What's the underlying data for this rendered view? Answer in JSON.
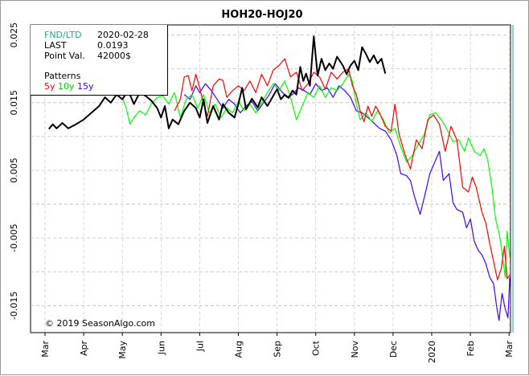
{
  "chart_data": {
    "type": "line",
    "title": "HOH20-HOJ20",
    "xlabel": "",
    "ylabel": "",
    "x_ticks": [
      "Mar",
      "Apr",
      "May",
      "Jun",
      "Jul",
      "Aug",
      "Sep",
      "Oct",
      "Nov",
      "Dec",
      "2020",
      "Feb",
      "Mar"
    ],
    "y_ticks": [
      "0.025",
      "0.015",
      "0.005",
      "-0.005",
      "-0.015"
    ],
    "ylim": [
      -0.019,
      0.0265
    ],
    "grid": true,
    "copyright": "© 2019 SeasonAlgo.com",
    "info": {
      "fnd_label": "FND/LTD",
      "fnd_value": "2020-02-28",
      "last_label": "LAST",
      "last_value": "0.0193",
      "point_label": "Point Val.",
      "point_value": "42000$",
      "patterns_label": "Patterns",
      "p5": "5y",
      "p10": "10y",
      "p15": "15y"
    },
    "colors": {
      "current": "#000000",
      "5y": "#ff0000",
      "10y": "#00ff00",
      "15y": "#4400ff",
      "fnd_line": "#2aa198"
    },
    "series": [
      {
        "key": "current",
        "color": "#000000",
        "points": [
          [
            0.1,
            0.0111
          ],
          [
            0.2,
            0.0118
          ],
          [
            0.3,
            0.0112
          ],
          [
            0.45,
            0.012
          ],
          [
            0.6,
            0.0112
          ],
          [
            0.8,
            0.0118
          ],
          [
            1.0,
            0.0125
          ],
          [
            1.2,
            0.0135
          ],
          [
            1.4,
            0.0145
          ],
          [
            1.55,
            0.0158
          ],
          [
            1.7,
            0.015
          ],
          [
            1.85,
            0.0162
          ],
          [
            2.0,
            0.0155
          ],
          [
            2.15,
            0.0168
          ],
          [
            2.3,
            0.0148
          ],
          [
            2.45,
            0.0165
          ],
          [
            2.6,
            0.016
          ],
          [
            2.75,
            0.0153
          ],
          [
            2.9,
            0.0142
          ],
          [
            3.0,
            0.0128
          ],
          [
            3.1,
            0.0145
          ],
          [
            3.2,
            0.0112
          ],
          [
            3.3,
            0.0125
          ],
          [
            3.45,
            0.0118
          ],
          [
            3.6,
            0.0138
          ],
          [
            3.75,
            0.015
          ],
          [
            3.9,
            0.0142
          ],
          [
            4.0,
            0.0128
          ],
          [
            4.1,
            0.0155
          ],
          [
            4.2,
            0.012
          ],
          [
            4.35,
            0.0145
          ],
          [
            4.5,
            0.0125
          ],
          [
            4.6,
            0.0148
          ],
          [
            4.75,
            0.0135
          ],
          [
            4.9,
            0.0128
          ],
          [
            5.0,
            0.0148
          ],
          [
            5.1,
            0.0172
          ],
          [
            5.2,
            0.014
          ],
          [
            5.35,
            0.0156
          ],
          [
            5.5,
            0.0143
          ],
          [
            5.6,
            0.0158
          ],
          [
            5.75,
            0.0145
          ],
          [
            5.9,
            0.016
          ],
          [
            6.0,
            0.017
          ],
          [
            6.1,
            0.0155
          ],
          [
            6.2,
            0.0162
          ],
          [
            6.3,
            0.0157
          ],
          [
            6.4,
            0.0168
          ],
          [
            6.5,
            0.0162
          ],
          [
            6.6,
            0.0203
          ],
          [
            6.68,
            0.0182
          ],
          [
            6.75,
            0.0193
          ],
          [
            6.85,
            0.0175
          ],
          [
            6.95,
            0.0248
          ],
          [
            7.05,
            0.019
          ],
          [
            7.15,
            0.0215
          ],
          [
            7.25,
            0.0198
          ],
          [
            7.35,
            0.0208
          ],
          [
            7.45,
            0.02
          ],
          [
            7.55,
            0.0218
          ],
          [
            7.7,
            0.0205
          ],
          [
            7.8,
            0.0192
          ],
          [
            7.9,
            0.0205
          ],
          [
            8.0,
            0.0212
          ],
          [
            8.1,
            0.0198
          ],
          [
            8.2,
            0.0232
          ],
          [
            8.3,
            0.0222
          ],
          [
            8.4,
            0.021
          ],
          [
            8.5,
            0.022
          ],
          [
            8.6,
            0.0208
          ],
          [
            8.7,
            0.0215
          ],
          [
            8.8,
            0.0193
          ]
        ]
      },
      {
        "key": "5y",
        "color": "#ff0000",
        "points": [
          [
            3.35,
            0.0138
          ],
          [
            3.5,
            0.0155
          ],
          [
            3.6,
            0.0188
          ],
          [
            3.7,
            0.019
          ],
          [
            3.8,
            0.0168
          ],
          [
            3.9,
            0.0192
          ],
          [
            4.0,
            0.0172
          ],
          [
            4.1,
            0.0148
          ],
          [
            4.2,
            0.013
          ],
          [
            4.35,
            0.0175
          ],
          [
            4.5,
            0.0185
          ],
          [
            4.6,
            0.0183
          ],
          [
            4.7,
            0.0158
          ],
          [
            4.85,
            0.0168
          ],
          [
            5.0,
            0.0175
          ],
          [
            5.15,
            0.0168
          ],
          [
            5.3,
            0.0182
          ],
          [
            5.45,
            0.0165
          ],
          [
            5.6,
            0.0192
          ],
          [
            5.75,
            0.0175
          ],
          [
            5.9,
            0.0198
          ],
          [
            6.05,
            0.0205
          ],
          [
            6.2,
            0.0215
          ],
          [
            6.35,
            0.0188
          ],
          [
            6.5,
            0.0195
          ],
          [
            6.65,
            0.0168
          ],
          [
            6.8,
            0.0178
          ],
          [
            6.95,
            0.0195
          ],
          [
            7.1,
            0.0188
          ],
          [
            7.25,
            0.017
          ],
          [
            7.4,
            0.0195
          ],
          [
            7.55,
            0.0185
          ],
          [
            7.7,
            0.0195
          ],
          [
            7.85,
            0.02
          ],
          [
            7.95,
            0.0175
          ],
          [
            8.05,
            0.0162
          ],
          [
            8.15,
            0.0138
          ],
          [
            8.25,
            0.0122
          ],
          [
            8.35,
            0.0145
          ],
          [
            8.45,
            0.013
          ],
          [
            8.55,
            0.0145
          ],
          [
            8.65,
            0.0135
          ],
          [
            8.8,
            0.0115
          ],
          [
            8.95,
            0.0108
          ],
          [
            9.05,
            0.0148
          ],
          [
            9.15,
            0.0105
          ],
          [
            9.3,
            0.0075
          ],
          [
            9.45,
            0.0052
          ],
          [
            9.6,
            0.0095
          ],
          [
            9.75,
            0.0082
          ],
          [
            9.9,
            0.0125
          ],
          [
            10.05,
            0.0132
          ],
          [
            10.2,
            0.0118
          ],
          [
            10.35,
            0.0078
          ],
          [
            10.5,
            0.0115
          ],
          [
            10.65,
            0.0095
          ],
          [
            10.8,
            0.0025
          ],
          [
            10.95,
            0.0018
          ],
          [
            11.05,
            0.004
          ],
          [
            11.15,
            0.0025
          ],
          [
            11.3,
            -0.0012
          ],
          [
            11.4,
            -0.0028
          ],
          [
            11.5,
            -0.0058
          ],
          [
            11.6,
            -0.0085
          ],
          [
            11.7,
            -0.0112
          ],
          [
            11.8,
            -0.0095
          ],
          [
            11.88,
            -0.0062
          ],
          [
            11.95,
            -0.011
          ],
          [
            12.02,
            -0.0105
          ]
        ]
      },
      {
        "key": "10y",
        "color": "#00ff00",
        "points": [
          [
            2.0,
            0.0158
          ],
          [
            2.1,
            0.0142
          ],
          [
            2.2,
            0.0118
          ],
          [
            2.3,
            0.0128
          ],
          [
            2.45,
            0.0138
          ],
          [
            2.6,
            0.0132
          ],
          [
            2.75,
            0.0148
          ],
          [
            2.9,
            0.0158
          ],
          [
            3.05,
            0.016
          ],
          [
            3.2,
            0.0148
          ],
          [
            3.35,
            0.0165
          ],
          [
            3.5,
            0.0128
          ],
          [
            3.65,
            0.0155
          ],
          [
            3.8,
            0.0162
          ],
          [
            3.95,
            0.0142
          ],
          [
            4.1,
            0.0162
          ],
          [
            4.25,
            0.0135
          ],
          [
            4.4,
            0.0148
          ],
          [
            4.55,
            0.0128
          ],
          [
            4.7,
            0.0142
          ],
          [
            4.85,
            0.0135
          ],
          [
            5.0,
            0.0152
          ],
          [
            5.15,
            0.0138
          ],
          [
            5.3,
            0.0148
          ],
          [
            5.45,
            0.0135
          ],
          [
            5.6,
            0.015
          ],
          [
            5.75,
            0.0165
          ],
          [
            5.9,
            0.0178
          ],
          [
            6.05,
            0.0168
          ],
          [
            6.2,
            0.0182
          ],
          [
            6.35,
            0.0158
          ],
          [
            6.5,
            0.0125
          ],
          [
            6.65,
            0.0145
          ],
          [
            6.8,
            0.0165
          ],
          [
            6.95,
            0.0158
          ],
          [
            7.1,
            0.0175
          ],
          [
            7.25,
            0.0158
          ],
          [
            7.4,
            0.0172
          ],
          [
            7.55,
            0.0168
          ],
          [
            7.7,
            0.0178
          ],
          [
            7.85,
            0.0192
          ],
          [
            7.95,
            0.0182
          ],
          [
            8.05,
            0.0148
          ],
          [
            8.15,
            0.0125
          ],
          [
            8.3,
            0.0135
          ],
          [
            8.45,
            0.0122
          ],
          [
            8.6,
            0.0138
          ],
          [
            8.75,
            0.0125
          ],
          [
            8.9,
            0.0105
          ],
          [
            9.05,
            0.0112
          ],
          [
            9.2,
            0.0085
          ],
          [
            9.35,
            0.0062
          ],
          [
            9.5,
            0.0072
          ],
          [
            9.65,
            0.0088
          ],
          [
            9.8,
            0.0102
          ],
          [
            9.95,
            0.0132
          ],
          [
            10.1,
            0.0135
          ],
          [
            10.25,
            0.0125
          ],
          [
            10.4,
            0.011
          ],
          [
            10.55,
            0.0092
          ],
          [
            10.7,
            0.0095
          ],
          [
            10.85,
            0.0078
          ],
          [
            10.95,
            0.0098
          ],
          [
            11.1,
            0.0078
          ],
          [
            11.25,
            0.0072
          ],
          [
            11.35,
            0.0082
          ],
          [
            11.45,
            0.0065
          ],
          [
            11.55,
            0.0028
          ],
          [
            11.65,
            -0.0022
          ],
          [
            11.75,
            -0.0045
          ],
          [
            11.82,
            -0.0072
          ],
          [
            11.9,
            -0.0108
          ],
          [
            11.95,
            -0.004
          ],
          [
            12.02,
            -0.0078
          ]
        ]
      },
      {
        "key": "15y",
        "color": "#4400ff",
        "points": [
          [
            3.6,
            0.0162
          ],
          [
            3.75,
            0.0155
          ],
          [
            3.9,
            0.0175
          ],
          [
            4.0,
            0.0165
          ],
          [
            4.15,
            0.0178
          ],
          [
            4.3,
            0.0168
          ],
          [
            4.45,
            0.0155
          ],
          [
            4.6,
            0.0142
          ],
          [
            4.75,
            0.0155
          ],
          [
            4.9,
            0.0148
          ],
          [
            5.05,
            0.0135
          ],
          [
            5.2,
            0.0145
          ],
          [
            5.35,
            0.0152
          ],
          [
            5.5,
            0.0138
          ],
          [
            5.65,
            0.015
          ],
          [
            5.8,
            0.0162
          ],
          [
            5.95,
            0.0178
          ],
          [
            6.1,
            0.0168
          ],
          [
            6.25,
            0.0158
          ],
          [
            6.4,
            0.0162
          ],
          [
            6.55,
            0.0172
          ],
          [
            6.7,
            0.0168
          ],
          [
            6.85,
            0.0162
          ],
          [
            7.0,
            0.0178
          ],
          [
            7.15,
            0.0168
          ],
          [
            7.3,
            0.0172
          ],
          [
            7.45,
            0.0158
          ],
          [
            7.6,
            0.0175
          ],
          [
            7.75,
            0.0168
          ],
          [
            7.9,
            0.0158
          ],
          [
            8.05,
            0.0138
          ],
          [
            8.2,
            0.0135
          ],
          [
            8.35,
            0.0128
          ],
          [
            8.5,
            0.012
          ],
          [
            8.65,
            0.0112
          ],
          [
            8.8,
            0.0108
          ],
          [
            8.95,
            0.0095
          ],
          [
            9.1,
            0.0072
          ],
          [
            9.2,
            0.0045
          ],
          [
            9.35,
            0.0042
          ],
          [
            9.45,
            0.0035
          ],
          [
            9.55,
            0.0012
          ],
          [
            9.7,
            -0.0015
          ],
          [
            9.8,
            0.0008
          ],
          [
            9.95,
            0.0045
          ],
          [
            10.1,
            0.0065
          ],
          [
            10.2,
            0.0078
          ],
          [
            10.3,
            0.0035
          ],
          [
            10.45,
            0.0045
          ],
          [
            10.55,
            0.0002
          ],
          [
            10.65,
            -0.0008
          ],
          [
            10.8,
            -0.0012
          ],
          [
            10.9,
            -0.0035
          ],
          [
            11.0,
            -0.0022
          ],
          [
            11.1,
            -0.0055
          ],
          [
            11.2,
            -0.0068
          ],
          [
            11.3,
            -0.0075
          ],
          [
            11.4,
            -0.0088
          ],
          [
            11.5,
            -0.0108
          ],
          [
            11.6,
            -0.0118
          ],
          [
            11.68,
            -0.0152
          ],
          [
            11.74,
            -0.0172
          ],
          [
            11.82,
            -0.0132
          ],
          [
            11.9,
            -0.0155
          ],
          [
            11.97,
            -0.0168
          ],
          [
            12.02,
            -0.0108
          ]
        ]
      }
    ],
    "fnd_x": 12.1
  }
}
